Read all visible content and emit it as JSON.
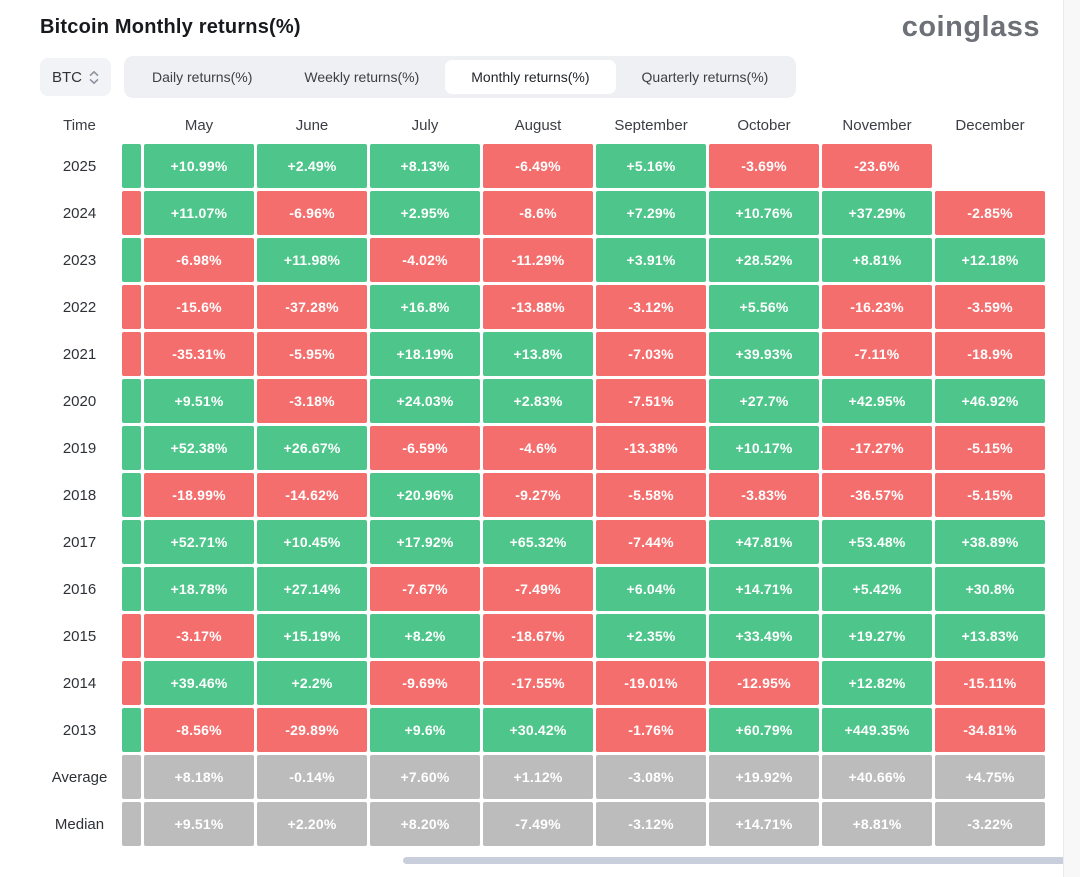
{
  "header": {
    "title": "Bitcoin Monthly returns(%)",
    "logo": "coinglass"
  },
  "toolbar": {
    "symbol_select": {
      "value": "BTC"
    },
    "tabs": [
      {
        "label": "Daily returns(%)",
        "active": false
      },
      {
        "label": "Weekly returns(%)",
        "active": false
      },
      {
        "label": "Monthly returns(%)",
        "active": true
      },
      {
        "label": "Quarterly returns(%)",
        "active": false
      }
    ]
  },
  "table": {
    "time_label": "Time"
  },
  "colors": {
    "positive": "#4ec68b",
    "negative": "#f46e6e",
    "neutral": "#bcbcbc",
    "scrollbar_thumb": "#c9cedd"
  },
  "chart_data": {
    "type": "heatmap",
    "title": "Bitcoin Monthly returns(%)",
    "note_partial_left_column": "a previous month column is cut off at the left edge; only a colored sliver is visible per row",
    "columns": [
      "May",
      "June",
      "July",
      "August",
      "September",
      "October",
      "November",
      "December"
    ],
    "rows": [
      {
        "label": "2025",
        "partial_tone": "positive",
        "cells": [
          {
            "text": "+10.99%",
            "value": 10.99,
            "tone": "positive"
          },
          {
            "text": "+2.49%",
            "value": 2.49,
            "tone": "positive"
          },
          {
            "text": "+8.13%",
            "value": 8.13,
            "tone": "positive"
          },
          {
            "text": "-6.49%",
            "value": -6.49,
            "tone": "negative"
          },
          {
            "text": "+5.16%",
            "value": 5.16,
            "tone": "positive"
          },
          {
            "text": "-3.69%",
            "value": -3.69,
            "tone": "negative"
          },
          {
            "text": "-23.6%",
            "value": -23.6,
            "tone": "negative"
          },
          {
            "text": "",
            "value": null,
            "tone": "empty"
          }
        ]
      },
      {
        "label": "2024",
        "partial_tone": "negative",
        "cells": [
          {
            "text": "+11.07%",
            "value": 11.07,
            "tone": "positive"
          },
          {
            "text": "-6.96%",
            "value": -6.96,
            "tone": "negative"
          },
          {
            "text": "+2.95%",
            "value": 2.95,
            "tone": "positive"
          },
          {
            "text": "-8.6%",
            "value": -8.6,
            "tone": "negative"
          },
          {
            "text": "+7.29%",
            "value": 7.29,
            "tone": "positive"
          },
          {
            "text": "+10.76%",
            "value": 10.76,
            "tone": "positive"
          },
          {
            "text": "+37.29%",
            "value": 37.29,
            "tone": "positive"
          },
          {
            "text": "-2.85%",
            "value": -2.85,
            "tone": "negative"
          }
        ]
      },
      {
        "label": "2023",
        "partial_tone": "positive",
        "cells": [
          {
            "text": "-6.98%",
            "value": -6.98,
            "tone": "negative"
          },
          {
            "text": "+11.98%",
            "value": 11.98,
            "tone": "positive"
          },
          {
            "text": "-4.02%",
            "value": -4.02,
            "tone": "negative"
          },
          {
            "text": "-11.29%",
            "value": -11.29,
            "tone": "negative"
          },
          {
            "text": "+3.91%",
            "value": 3.91,
            "tone": "positive"
          },
          {
            "text": "+28.52%",
            "value": 28.52,
            "tone": "positive"
          },
          {
            "text": "+8.81%",
            "value": 8.81,
            "tone": "positive"
          },
          {
            "text": "+12.18%",
            "value": 12.18,
            "tone": "positive"
          }
        ]
      },
      {
        "label": "2022",
        "partial_tone": "negative",
        "cells": [
          {
            "text": "-15.6%",
            "value": -15.6,
            "tone": "negative"
          },
          {
            "text": "-37.28%",
            "value": -37.28,
            "tone": "negative"
          },
          {
            "text": "+16.8%",
            "value": 16.8,
            "tone": "positive"
          },
          {
            "text": "-13.88%",
            "value": -13.88,
            "tone": "negative"
          },
          {
            "text": "-3.12%",
            "value": -3.12,
            "tone": "negative"
          },
          {
            "text": "+5.56%",
            "value": 5.56,
            "tone": "positive"
          },
          {
            "text": "-16.23%",
            "value": -16.23,
            "tone": "negative"
          },
          {
            "text": "-3.59%",
            "value": -3.59,
            "tone": "negative"
          }
        ]
      },
      {
        "label": "2021",
        "partial_tone": "negative",
        "cells": [
          {
            "text": "-35.31%",
            "value": -35.31,
            "tone": "negative"
          },
          {
            "text": "-5.95%",
            "value": -5.95,
            "tone": "negative"
          },
          {
            "text": "+18.19%",
            "value": 18.19,
            "tone": "positive"
          },
          {
            "text": "+13.8%",
            "value": 13.8,
            "tone": "positive"
          },
          {
            "text": "-7.03%",
            "value": -7.03,
            "tone": "negative"
          },
          {
            "text": "+39.93%",
            "value": 39.93,
            "tone": "positive"
          },
          {
            "text": "-7.11%",
            "value": -7.11,
            "tone": "negative"
          },
          {
            "text": "-18.9%",
            "value": -18.9,
            "tone": "negative"
          }
        ]
      },
      {
        "label": "2020",
        "partial_tone": "positive",
        "cells": [
          {
            "text": "+9.51%",
            "value": 9.51,
            "tone": "positive"
          },
          {
            "text": "-3.18%",
            "value": -3.18,
            "tone": "negative"
          },
          {
            "text": "+24.03%",
            "value": 24.03,
            "tone": "positive"
          },
          {
            "text": "+2.83%",
            "value": 2.83,
            "tone": "positive"
          },
          {
            "text": "-7.51%",
            "value": -7.51,
            "tone": "negative"
          },
          {
            "text": "+27.7%",
            "value": 27.7,
            "tone": "positive"
          },
          {
            "text": "+42.95%",
            "value": 42.95,
            "tone": "positive"
          },
          {
            "text": "+46.92%",
            "value": 46.92,
            "tone": "positive"
          }
        ]
      },
      {
        "label": "2019",
        "partial_tone": "positive",
        "cells": [
          {
            "text": "+52.38%",
            "value": 52.38,
            "tone": "positive"
          },
          {
            "text": "+26.67%",
            "value": 26.67,
            "tone": "positive"
          },
          {
            "text": "-6.59%",
            "value": -6.59,
            "tone": "negative"
          },
          {
            "text": "-4.6%",
            "value": -4.6,
            "tone": "negative"
          },
          {
            "text": "-13.38%",
            "value": -13.38,
            "tone": "negative"
          },
          {
            "text": "+10.17%",
            "value": 10.17,
            "tone": "positive"
          },
          {
            "text": "-17.27%",
            "value": -17.27,
            "tone": "negative"
          },
          {
            "text": "-5.15%",
            "value": -5.15,
            "tone": "negative"
          }
        ]
      },
      {
        "label": "2018",
        "partial_tone": "positive",
        "cells": [
          {
            "text": "-18.99%",
            "value": -18.99,
            "tone": "negative"
          },
          {
            "text": "-14.62%",
            "value": -14.62,
            "tone": "negative"
          },
          {
            "text": "+20.96%",
            "value": 20.96,
            "tone": "positive"
          },
          {
            "text": "-9.27%",
            "value": -9.27,
            "tone": "negative"
          },
          {
            "text": "-5.58%",
            "value": -5.58,
            "tone": "negative"
          },
          {
            "text": "-3.83%",
            "value": -3.83,
            "tone": "negative"
          },
          {
            "text": "-36.57%",
            "value": -36.57,
            "tone": "negative"
          },
          {
            "text": "-5.15%",
            "value": -5.15,
            "tone": "negative"
          }
        ]
      },
      {
        "label": "2017",
        "partial_tone": "positive",
        "cells": [
          {
            "text": "+52.71%",
            "value": 52.71,
            "tone": "positive"
          },
          {
            "text": "+10.45%",
            "value": 10.45,
            "tone": "positive"
          },
          {
            "text": "+17.92%",
            "value": 17.92,
            "tone": "positive"
          },
          {
            "text": "+65.32%",
            "value": 65.32,
            "tone": "positive"
          },
          {
            "text": "-7.44%",
            "value": -7.44,
            "tone": "negative"
          },
          {
            "text": "+47.81%",
            "value": 47.81,
            "tone": "positive"
          },
          {
            "text": "+53.48%",
            "value": 53.48,
            "tone": "positive"
          },
          {
            "text": "+38.89%",
            "value": 38.89,
            "tone": "positive"
          }
        ]
      },
      {
        "label": "2016",
        "partial_tone": "positive",
        "cells": [
          {
            "text": "+18.78%",
            "value": 18.78,
            "tone": "positive"
          },
          {
            "text": "+27.14%",
            "value": 27.14,
            "tone": "positive"
          },
          {
            "text": "-7.67%",
            "value": -7.67,
            "tone": "negative"
          },
          {
            "text": "-7.49%",
            "value": -7.49,
            "tone": "negative"
          },
          {
            "text": "+6.04%",
            "value": 6.04,
            "tone": "positive"
          },
          {
            "text": "+14.71%",
            "value": 14.71,
            "tone": "positive"
          },
          {
            "text": "+5.42%",
            "value": 5.42,
            "tone": "positive"
          },
          {
            "text": "+30.8%",
            "value": 30.8,
            "tone": "positive"
          }
        ]
      },
      {
        "label": "2015",
        "partial_tone": "negative",
        "cells": [
          {
            "text": "-3.17%",
            "value": -3.17,
            "tone": "negative"
          },
          {
            "text": "+15.19%",
            "value": 15.19,
            "tone": "positive"
          },
          {
            "text": "+8.2%",
            "value": 8.2,
            "tone": "positive"
          },
          {
            "text": "-18.67%",
            "value": -18.67,
            "tone": "negative"
          },
          {
            "text": "+2.35%",
            "value": 2.35,
            "tone": "positive"
          },
          {
            "text": "+33.49%",
            "value": 33.49,
            "tone": "positive"
          },
          {
            "text": "+19.27%",
            "value": 19.27,
            "tone": "positive"
          },
          {
            "text": "+13.83%",
            "value": 13.83,
            "tone": "positive"
          }
        ]
      },
      {
        "label": "2014",
        "partial_tone": "negative",
        "cells": [
          {
            "text": "+39.46%",
            "value": 39.46,
            "tone": "positive"
          },
          {
            "text": "+2.2%",
            "value": 2.2,
            "tone": "positive"
          },
          {
            "text": "-9.69%",
            "value": -9.69,
            "tone": "negative"
          },
          {
            "text": "-17.55%",
            "value": -17.55,
            "tone": "negative"
          },
          {
            "text": "-19.01%",
            "value": -19.01,
            "tone": "negative"
          },
          {
            "text": "-12.95%",
            "value": -12.95,
            "tone": "negative"
          },
          {
            "text": "+12.82%",
            "value": 12.82,
            "tone": "positive"
          },
          {
            "text": "-15.11%",
            "value": -15.11,
            "tone": "negative"
          }
        ]
      },
      {
        "label": "2013",
        "partial_tone": "positive",
        "cells": [
          {
            "text": "-8.56%",
            "value": -8.56,
            "tone": "negative"
          },
          {
            "text": "-29.89%",
            "value": -29.89,
            "tone": "negative"
          },
          {
            "text": "+9.6%",
            "value": 9.6,
            "tone": "positive"
          },
          {
            "text": "+30.42%",
            "value": 30.42,
            "tone": "positive"
          },
          {
            "text": "-1.76%",
            "value": -1.76,
            "tone": "negative"
          },
          {
            "text": "+60.79%",
            "value": 60.79,
            "tone": "positive"
          },
          {
            "text": "+449.35%",
            "value": 449.35,
            "tone": "positive"
          },
          {
            "text": "-34.81%",
            "value": -34.81,
            "tone": "negative"
          }
        ]
      },
      {
        "label": "Average",
        "partial_tone": "neutral",
        "cells": [
          {
            "text": "+8.18%",
            "value": 8.18,
            "tone": "neutral"
          },
          {
            "text": "-0.14%",
            "value": -0.14,
            "tone": "neutral"
          },
          {
            "text": "+7.60%",
            "value": 7.6,
            "tone": "neutral"
          },
          {
            "text": "+1.12%",
            "value": 1.12,
            "tone": "neutral"
          },
          {
            "text": "-3.08%",
            "value": -3.08,
            "tone": "neutral"
          },
          {
            "text": "+19.92%",
            "value": 19.92,
            "tone": "neutral"
          },
          {
            "text": "+40.66%",
            "value": 40.66,
            "tone": "neutral"
          },
          {
            "text": "+4.75%",
            "value": 4.75,
            "tone": "neutral"
          }
        ]
      },
      {
        "label": "Median",
        "partial_tone": "neutral",
        "cells": [
          {
            "text": "+9.51%",
            "value": 9.51,
            "tone": "neutral"
          },
          {
            "text": "+2.20%",
            "value": 2.2,
            "tone": "neutral"
          },
          {
            "text": "+8.20%",
            "value": 8.2,
            "tone": "neutral"
          },
          {
            "text": "-7.49%",
            "value": -7.49,
            "tone": "neutral"
          },
          {
            "text": "-3.12%",
            "value": -3.12,
            "tone": "neutral"
          },
          {
            "text": "+14.71%",
            "value": 14.71,
            "tone": "neutral"
          },
          {
            "text": "+8.81%",
            "value": 8.81,
            "tone": "neutral"
          },
          {
            "text": "-3.22%",
            "value": -3.22,
            "tone": "neutral"
          }
        ]
      }
    ]
  }
}
